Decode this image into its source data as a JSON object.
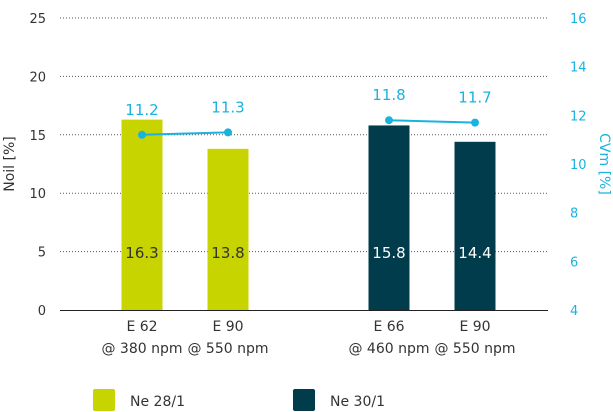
{
  "chart_data": {
    "type": "bar",
    "ylabel": "Noil [%]",
    "y2label": "CVm [%]",
    "ylim": [
      0,
      25
    ],
    "y2lim": [
      4,
      16
    ],
    "yticks": [
      0,
      5,
      10,
      15,
      20,
      25
    ],
    "y2ticks": [
      4,
      6,
      8,
      10,
      12,
      14,
      16
    ],
    "grid": "horizontal-dotted",
    "groups": [
      {
        "name": "Ne 28/1",
        "color": "#c8d400",
        "label_color": "#333333",
        "categories": [
          {
            "line1": "E 62",
            "line2": "@ 380 npm",
            "noil": 16.3,
            "noil_label": "16.3",
            "cvm": 11.2,
            "cvm_label": "11.2"
          },
          {
            "line1": "E 90",
            "line2": "@ 550 npm",
            "noil": 13.8,
            "noil_label": "13.8",
            "cvm": 11.3,
            "cvm_label": "11.3"
          }
        ]
      },
      {
        "name": "Ne 30/1",
        "color": "#003c4b",
        "label_color": "#ffffff",
        "categories": [
          {
            "line1": "E 66",
            "line2": "@ 460 npm",
            "noil": 15.8,
            "noil_label": "15.8",
            "cvm": 11.8,
            "cvm_label": "11.8"
          },
          {
            "line1": "E 90",
            "line2": "@ 550 npm",
            "noil": 14.4,
            "noil_label": "14.4",
            "cvm": 11.7,
            "cvm_label": "11.7"
          }
        ]
      }
    ],
    "cv_line_color": "#1ab3e0",
    "legend_position": "bottom-left"
  }
}
